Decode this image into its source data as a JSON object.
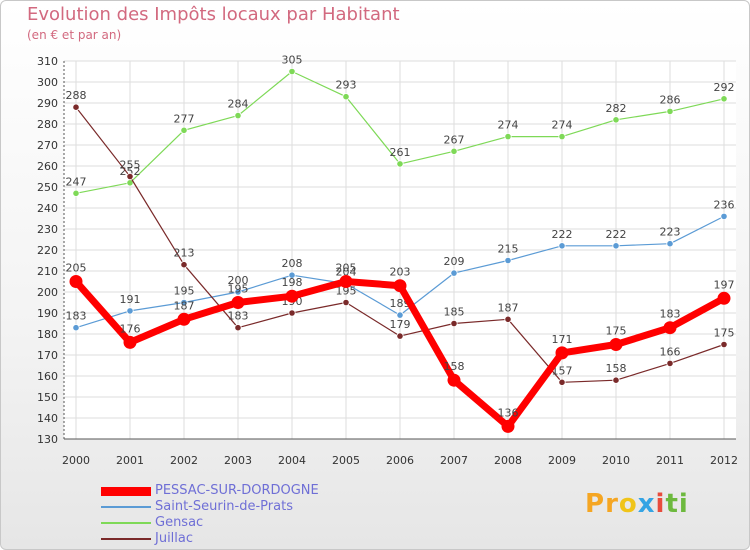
{
  "title": "Evolution des Impôts locaux par Habitant",
  "subtitle": "(en € et par an)",
  "brand": {
    "letters": [
      "P",
      "r",
      "o",
      "x",
      "i",
      "t",
      "i"
    ],
    "colors": [
      "#f5a623",
      "#f5a623",
      "#f0c419",
      "#35a4e4",
      "#e84c3d",
      "#6db93e",
      "#6db93e"
    ]
  },
  "chart_data": {
    "type": "line",
    "x": [
      2000,
      2001,
      2002,
      2003,
      2004,
      2005,
      2006,
      2007,
      2008,
      2009,
      2010,
      2011,
      2012
    ],
    "ylim": [
      130,
      310
    ],
    "yticks": [
      130,
      140,
      150,
      160,
      170,
      180,
      190,
      200,
      210,
      220,
      230,
      240,
      250,
      260,
      270,
      280,
      290,
      300,
      310
    ],
    "grid": true,
    "series": [
      {
        "name": "PESSAC-SUR-DORDOGNE",
        "color": "#ff0000",
        "values": [
          205,
          176,
          187,
          195,
          198,
          205,
          203,
          158,
          136,
          171,
          175,
          183,
          197
        ],
        "labels": [
          "205",
          "176",
          "187",
          "195",
          "198",
          "205",
          "203",
          "158",
          "136",
          "171",
          "175",
          "183",
          "197"
        ]
      },
      {
        "name": "Saint-Seurin-de-Prats",
        "color": "#5b9bd5",
        "values": [
          183,
          191,
          195,
          200,
          208,
          204,
          189,
          209,
          215,
          222,
          222,
          223,
          236
        ],
        "labels": [
          "183",
          "191",
          "195",
          "200",
          "208",
          "204",
          "189",
          "209",
          "215",
          "222",
          "222",
          "223",
          "236"
        ]
      },
      {
        "name": "Gensac",
        "color": "#7ed957",
        "values": [
          247,
          252,
          277,
          284,
          305,
          293,
          261,
          267,
          274,
          274,
          282,
          286,
          292
        ],
        "labels": [
          "247",
          "252",
          "277",
          "284",
          "305",
          "293",
          "261",
          "267",
          "274",
          "274",
          "282",
          "286",
          "292"
        ]
      },
      {
        "name": "Juillac",
        "color": "#7a2a2a",
        "values": [
          288,
          255,
          213,
          183,
          190,
          195,
          179,
          185,
          187,
          157,
          158,
          166,
          175
        ],
        "labels": [
          "288",
          "255",
          "213",
          "183",
          "190",
          "195",
          "179",
          "185",
          "187",
          "157",
          "158",
          "166",
          "175"
        ]
      }
    ]
  }
}
